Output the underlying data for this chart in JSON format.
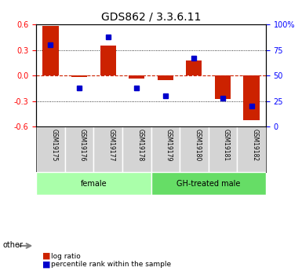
{
  "title": "GDS862 / 3.3.6.11",
  "samples": [
    "GSM19175",
    "GSM19176",
    "GSM19177",
    "GSM19178",
    "GSM19179",
    "GSM19180",
    "GSM19181",
    "GSM19182"
  ],
  "log_ratio": [
    0.58,
    -0.02,
    0.35,
    -0.03,
    -0.05,
    0.18,
    -0.27,
    -0.52
  ],
  "percentile_rank": [
    0.8,
    0.38,
    0.88,
    0.38,
    0.3,
    0.67,
    0.28,
    0.2
  ],
  "groups": [
    {
      "label": "female",
      "start": 0,
      "end": 4,
      "color": "#aaffaa"
    },
    {
      "label": "GH-treated male",
      "start": 4,
      "end": 8,
      "color": "#66dd66"
    }
  ],
  "bar_color": "#cc2200",
  "dot_color": "#0000cc",
  "ylim": [
    -0.6,
    0.6
  ],
  "yticks_left": [
    -0.6,
    -0.3,
    0.0,
    0.3,
    0.6
  ],
  "yticks_right": [
    0,
    25,
    50,
    75,
    100
  ],
  "hlines": [
    -0.3,
    0.0,
    0.3
  ],
  "grid_color": "#000000",
  "zero_line_color": "#cc2200",
  "background_color": "#ffffff",
  "plot_bg": "#ffffff",
  "other_label": "other",
  "legend_items": [
    "log ratio",
    "percentile rank within the sample"
  ]
}
